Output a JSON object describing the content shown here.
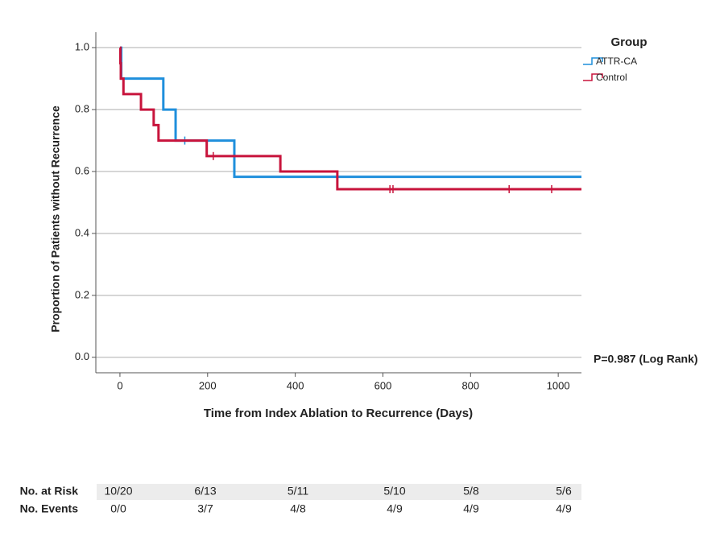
{
  "chart_data": {
    "type": "kaplan-meier",
    "x_label": "Time from Index Ablation to Recurrence (Days)",
    "y_label": "Proportion of Patients without Recurrence",
    "legend_title": "Group",
    "legend_position": "right",
    "annotation": "P=0.987 (Log Rank)",
    "xlim": [
      -55,
      1053
    ],
    "ylim": [
      -0.05,
      1.05
    ],
    "xticks": [
      0,
      200,
      400,
      600,
      800,
      1000
    ],
    "yticks": [
      {
        "value": 0,
        "label": "0.0"
      },
      0.2,
      0.4,
      0.6,
      0.8,
      {
        "value": 1,
        "label": "1.0"
      }
    ],
    "grid": true,
    "series": [
      {
        "name": "ATTR-CA",
        "color": "#1f8fdc",
        "x": [
          0,
          3,
          99,
          127,
          261
        ],
        "values": [
          1.0,
          0.9,
          0.8,
          0.7,
          0.583
        ],
        "censor_x": [
          148
        ],
        "censor_values": [
          0.7
        ]
      },
      {
        "name": "Control",
        "color": "#c8143c",
        "x": [
          0,
          1,
          2,
          8,
          48,
          77,
          88,
          198,
          366,
          496
        ],
        "values": [
          1.0,
          0.95,
          0.9,
          0.85,
          0.8,
          0.75,
          0.7,
          0.65,
          0.6,
          0.543
        ],
        "censor_x": [
          213,
          616,
          623,
          888,
          985
        ],
        "censor_values": [
          0.65,
          0.543,
          0.543,
          0.543,
          0.543
        ]
      }
    ]
  },
  "risk_table": {
    "rows": [
      {
        "label": "No. at Risk",
        "values": [
          "10/20",
          "6/13",
          "5/11",
          "5/10",
          "5/8",
          "5/6"
        ]
      },
      {
        "label": "No. Events",
        "values": [
          "0/0",
          "3/7",
          "4/8",
          "4/9",
          "4/9",
          "4/9"
        ]
      }
    ]
  }
}
